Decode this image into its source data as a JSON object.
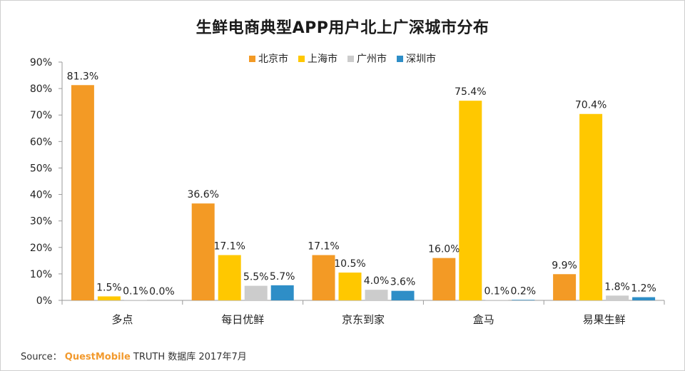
{
  "source": {
    "prefix": "Source：",
    "brand": "QuestMobile",
    "suffix": "TRUTH 数据库 2017年7月"
  },
  "chart_data": {
    "type": "bar",
    "title": "生鲜电商典型APP用户北上广深城市分布",
    "categories": [
      "多点",
      "每日优鲜",
      "京东到家",
      "盒马",
      "易果生鲜"
    ],
    "series": [
      {
        "name": "北京市",
        "color": "#f39a25",
        "values": [
          81.3,
          36.6,
          17.1,
          16.0,
          9.9
        ],
        "labels": [
          "81.3%",
          "36.6%",
          "17.1%",
          "16.0%",
          "9.9%"
        ]
      },
      {
        "name": "上海市",
        "color": "#ffc800",
        "values": [
          1.5,
          17.1,
          10.5,
          75.4,
          70.4
        ],
        "labels": [
          "1.5%",
          "17.1%",
          "10.5%",
          "75.4%",
          "70.4%"
        ]
      },
      {
        "name": "广州市",
        "color": "#cccccc",
        "values": [
          0.1,
          5.5,
          4.0,
          0.1,
          1.8
        ],
        "labels": [
          "0.1%",
          "5.5%",
          "4.0%",
          "0.1%",
          "1.8%"
        ]
      },
      {
        "name": "深圳市",
        "color": "#2e8ec7",
        "values": [
          0.0,
          5.7,
          3.6,
          0.2,
          1.2
        ],
        "labels": [
          "0.0%",
          "5.7%",
          "3.6%",
          "0.2%",
          "1.2%"
        ]
      }
    ],
    "yticks": [
      "0%",
      "10%",
      "20%",
      "30%",
      "40%",
      "50%",
      "60%",
      "70%",
      "80%",
      "90%"
    ],
    "ylim": [
      0,
      90
    ],
    "legend_position": "top-center",
    "grid": false
  }
}
